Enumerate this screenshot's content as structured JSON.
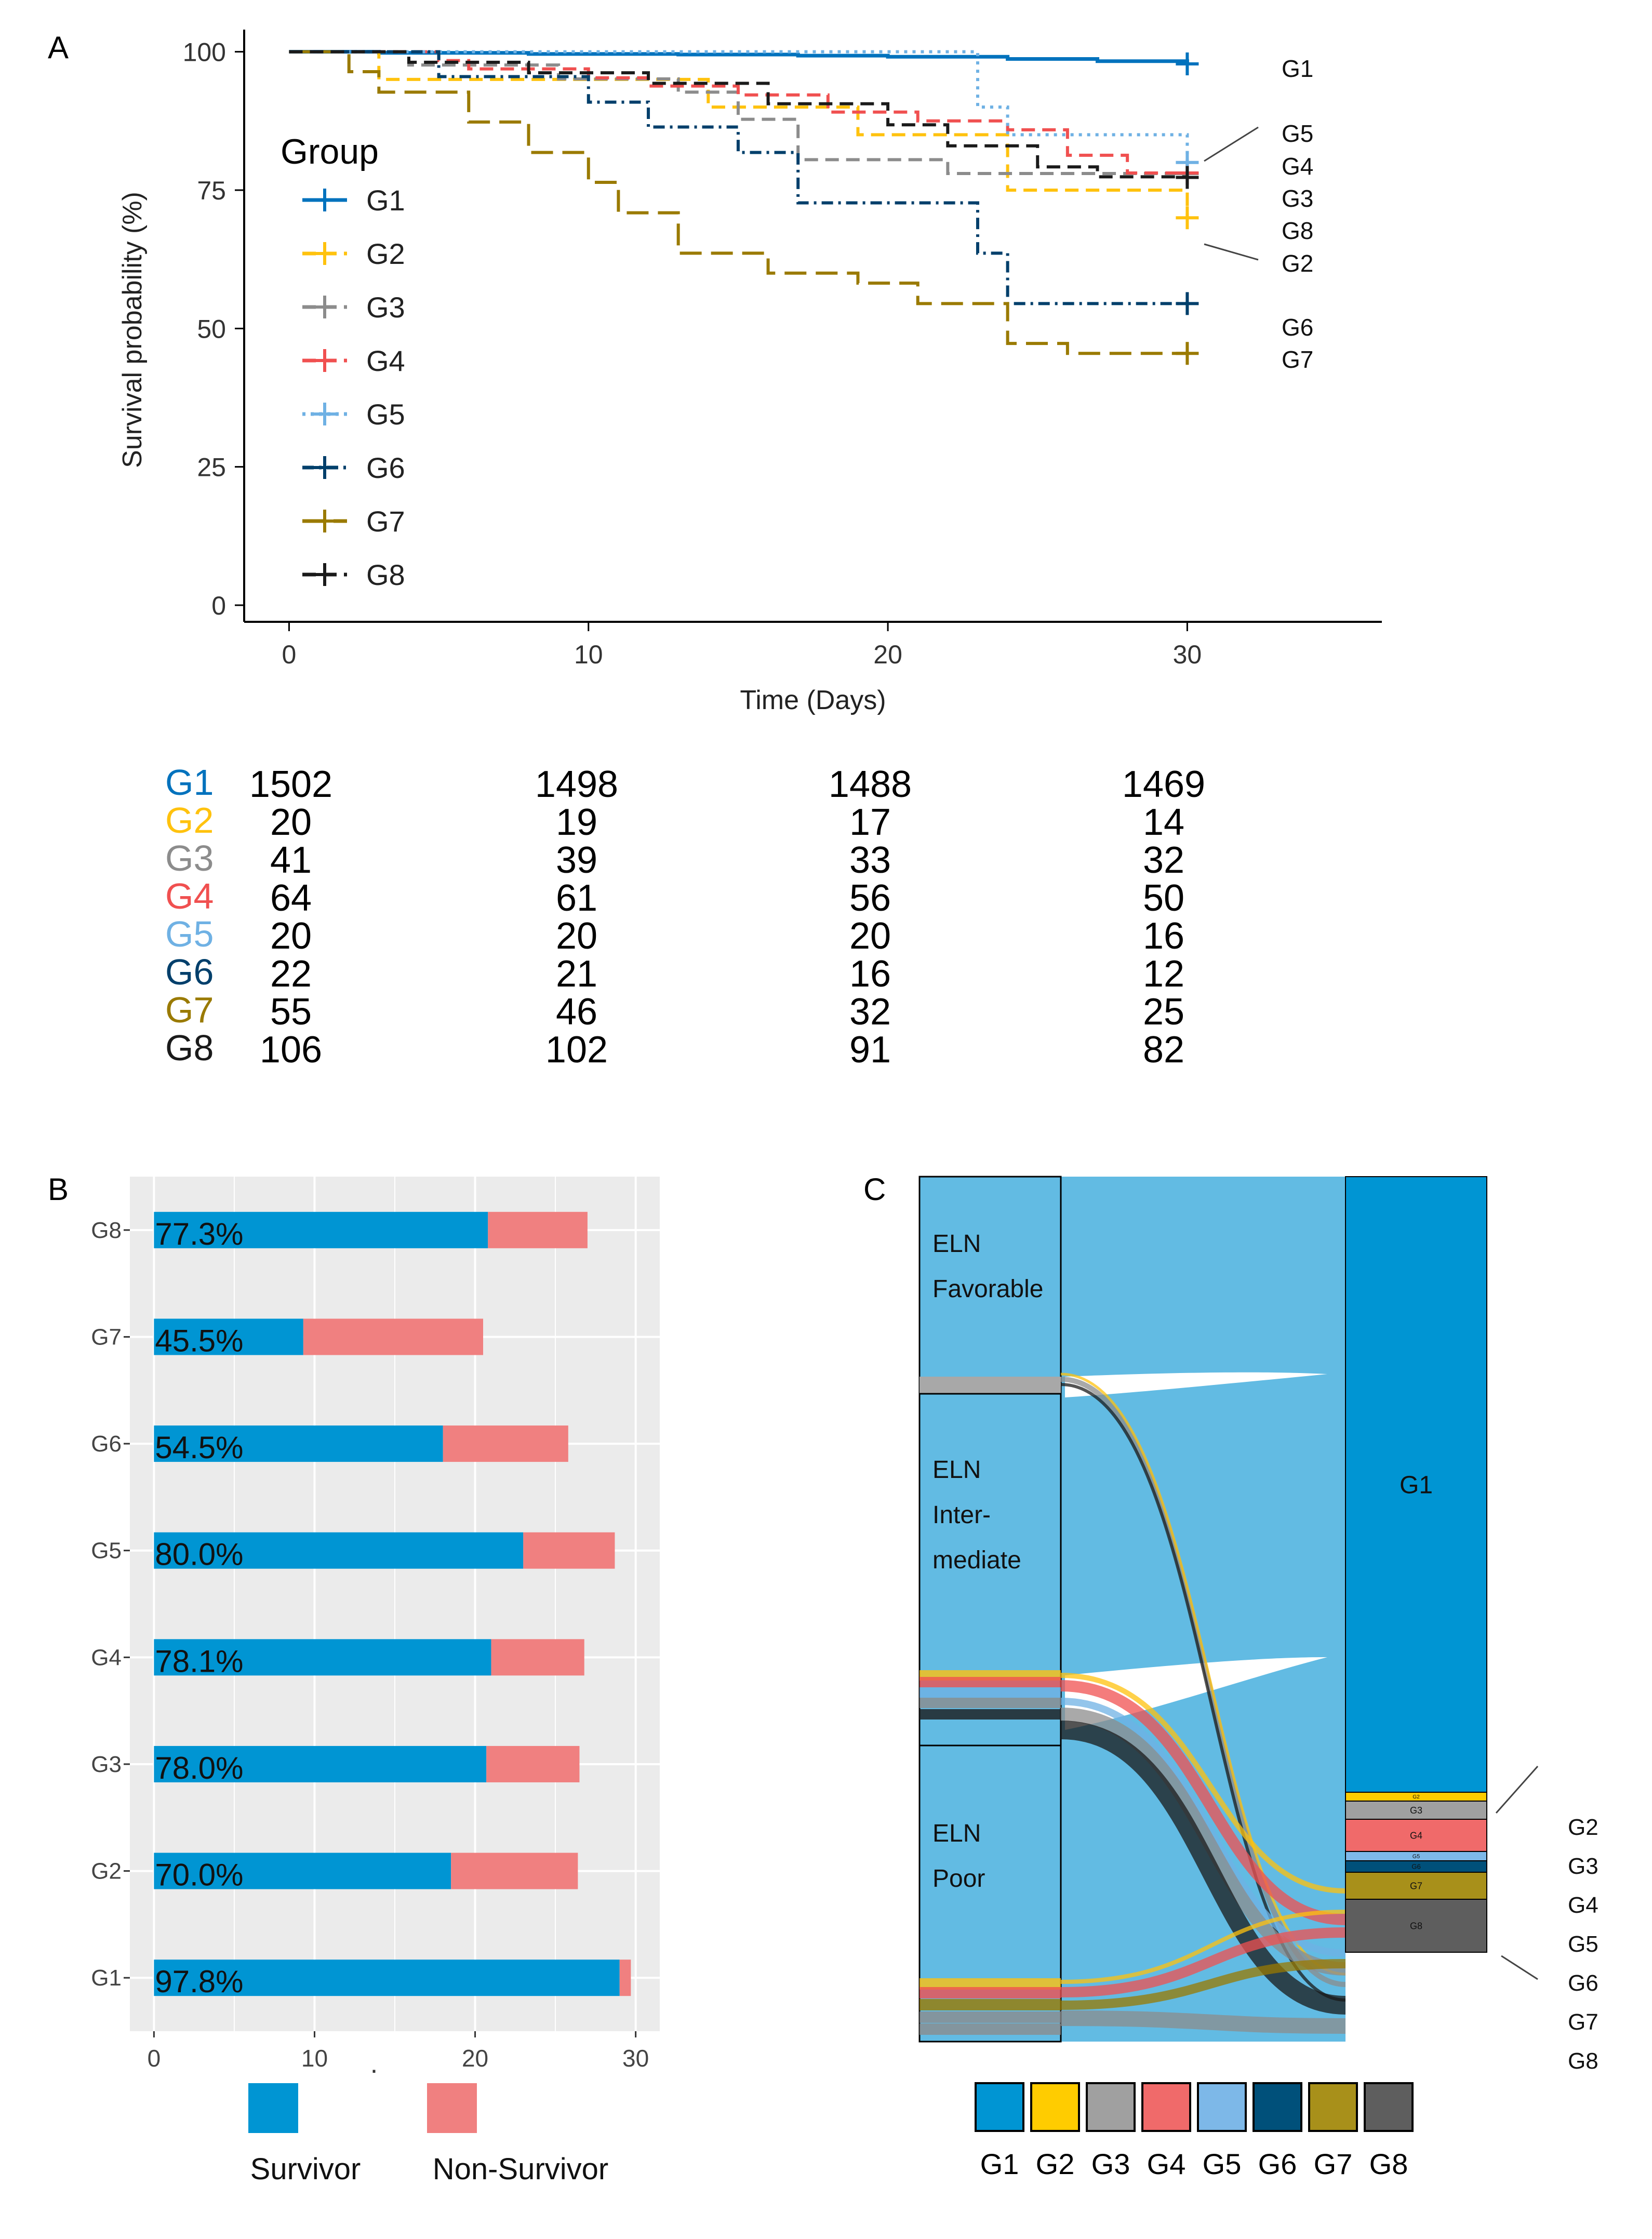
{
  "panel_labels": {
    "a": "A",
    "b": "B",
    "c": "C"
  },
  "colors": {
    "G1": "#0072BD",
    "G2": "#FFC20E",
    "G3": "#8C8C8C",
    "G4": "#F05050",
    "G5": "#6FB1E4",
    "G6": "#003F6B",
    "G7": "#9A7A00",
    "G8": "#1A1A1A",
    "survivor": "#0095D3",
    "non_survivor": "#F08080",
    "sankey_band": "#62BBE3"
  },
  "chart_data": [
    {
      "type": "line",
      "subtype": "kaplan-meier",
      "title": "",
      "xlabel": "Time (Days)",
      "ylabel": "Survival probability (%)",
      "xlim": [
        -1.5,
        36.5
      ],
      "ylim": [
        -3,
        104
      ],
      "xticks": [
        0,
        10,
        20,
        30
      ],
      "yticks": [
        0,
        25,
        50,
        75,
        100
      ],
      "legend_title": "Group",
      "legend_position": "left-inside",
      "series": [
        {
          "name": "G1",
          "color": "#0072BD",
          "dash": "solid",
          "steps": [
            [
              0,
              100
            ],
            [
              3,
              99.8
            ],
            [
              8,
              99.6
            ],
            [
              13,
              99.5
            ],
            [
              17,
              99.3
            ],
            [
              20,
              99.1
            ],
            [
              24,
              98.7
            ],
            [
              27,
              98.3
            ],
            [
              30,
              97.8
            ]
          ]
        },
        {
          "name": "G2",
          "color": "#FFC20E",
          "dash": "dashed",
          "steps": [
            [
              0,
              100
            ],
            [
              3,
              95
            ],
            [
              10,
              95
            ],
            [
              14,
              90
            ],
            [
              19,
              85
            ],
            [
              24,
              75
            ],
            [
              28,
              75
            ],
            [
              30,
              70
            ]
          ]
        },
        {
          "name": "G3",
          "color": "#8C8C8C",
          "dash": "dashed",
          "steps": [
            [
              0,
              100
            ],
            [
              4,
              97.6
            ],
            [
              9,
              95.1
            ],
            [
              13,
              92.7
            ],
            [
              15,
              87.8
            ],
            [
              17,
              80.5
            ],
            [
              22,
              78
            ],
            [
              30,
              78
            ]
          ]
        },
        {
          "name": "G4",
          "color": "#F05050",
          "dash": "dashed",
          "steps": [
            [
              0,
              100
            ],
            [
              5,
              98.4
            ],
            [
              6,
              96.9
            ],
            [
              10,
              95.3
            ],
            [
              12,
              93.8
            ],
            [
              15,
              92.2
            ],
            [
              18,
              89.1
            ],
            [
              21,
              87.5
            ],
            [
              24,
              85.9
            ],
            [
              26,
              81.3
            ],
            [
              28,
              78.1
            ],
            [
              30,
              78.1
            ]
          ]
        },
        {
          "name": "G5",
          "color": "#6FB1E4",
          "dash": "dotted",
          "steps": [
            [
              0,
              100
            ],
            [
              20,
              100
            ],
            [
              23,
              90
            ],
            [
              24,
              85
            ],
            [
              30,
              80
            ]
          ]
        },
        {
          "name": "G6",
          "color": "#003F6B",
          "dash": "dashdot",
          "steps": [
            [
              0,
              100
            ],
            [
              5,
              95.5
            ],
            [
              10,
              90.9
            ],
            [
              12,
              86.4
            ],
            [
              15,
              81.8
            ],
            [
              17,
              72.7
            ],
            [
              23,
              63.6
            ],
            [
              24,
              54.5
            ],
            [
              30,
              54.5
            ]
          ]
        },
        {
          "name": "G7",
          "color": "#9A7A00",
          "dash": "longdash",
          "steps": [
            [
              0,
              100
            ],
            [
              2,
              96.4
            ],
            [
              3,
              92.7
            ],
            [
              6,
              87.3
            ],
            [
              8,
              81.8
            ],
            [
              10,
              76.4
            ],
            [
              11,
              70.9
            ],
            [
              13,
              63.6
            ],
            [
              16,
              60
            ],
            [
              19,
              58.2
            ],
            [
              21,
              54.5
            ],
            [
              24,
              47.3
            ],
            [
              26,
              45.5
            ],
            [
              30,
              45.5
            ]
          ]
        },
        {
          "name": "G8",
          "color": "#1A1A1A",
          "dash": "dashed",
          "steps": [
            [
              0,
              100
            ],
            [
              4,
              98.1
            ],
            [
              8,
              96.2
            ],
            [
              12,
              94.3
            ],
            [
              16,
              90.6
            ],
            [
              20,
              86.8
            ],
            [
              22,
              83
            ],
            [
              25,
              79.2
            ],
            [
              27,
              77.4
            ],
            [
              30,
              77.3
            ]
          ]
        }
      ],
      "right_labels": [
        "G1",
        "G5",
        "G4",
        "G3",
        "G8",
        "G2",
        "G6",
        "G7"
      ]
    },
    {
      "type": "table",
      "subtype": "number-at-risk",
      "columns_x": [
        0,
        10,
        20,
        30
      ],
      "rows": [
        {
          "group": "G1",
          "values": [
            "1502",
            "1498",
            "1488",
            "1469"
          ]
        },
        {
          "group": "G2",
          "values": [
            "20",
            "19",
            "17",
            "14"
          ]
        },
        {
          "group": "G3",
          "values": [
            "41",
            "39",
            "33",
            "32"
          ]
        },
        {
          "group": "G4",
          "values": [
            "64",
            "61",
            "56",
            "50"
          ]
        },
        {
          "group": "G5",
          "values": [
            "20",
            "20",
            "20",
            "16"
          ]
        },
        {
          "group": "G6",
          "values": [
            "22",
            "21",
            "16",
            "12"
          ]
        },
        {
          "group": "G7",
          "values": [
            "55",
            "46",
            "32",
            "25"
          ]
        },
        {
          "group": "G8",
          "values": [
            "106",
            "102",
            "91",
            "82"
          ]
        }
      ]
    },
    {
      "type": "bar",
      "subtype": "horizontal-stacked",
      "xlabel": ".",
      "ylabel": "",
      "xlim": [
        -1.5,
        31.5
      ],
      "xticks": [
        0,
        10,
        20,
        30
      ],
      "grid": true,
      "categories": [
        "G8",
        "G7",
        "G6",
        "G5",
        "G4",
        "G3",
        "G2",
        "G1"
      ],
      "series": [
        {
          "name": "Survivor",
          "color": "#0095D3",
          "values": [
            20.8,
            9.3,
            18.0,
            23.0,
            21.0,
            20.7,
            18.5,
            29.0
          ]
        },
        {
          "name": "Non-Survivor",
          "color": "#F08080",
          "values": [
            6.2,
            11.2,
            7.8,
            5.7,
            5.8,
            5.8,
            7.9,
            0.7
          ]
        }
      ],
      "bar_labels": [
        "77.3%",
        "45.5%",
        "54.5%",
        "80.0%",
        "78.1%",
        "78.0%",
        "70.0%",
        "97.8%"
      ],
      "legend_position": "bottom"
    },
    {
      "type": "other",
      "subtype": "sankey",
      "left_nodes": [
        {
          "label_lines": [
            "ELN",
            "Favorable"
          ]
        },
        {
          "label_lines": [
            "ELN",
            "Inter-",
            "mediate"
          ]
        },
        {
          "label_lines": [
            "ELN",
            "Poor"
          ]
        }
      ],
      "right_nodes": [
        {
          "name": "G1",
          "label": "G1"
        },
        {
          "name": "G2",
          "label": "G2"
        },
        {
          "name": "G3",
          "label": "G3"
        },
        {
          "name": "G4",
          "label": "G4"
        },
        {
          "name": "G5",
          "label": "G5"
        },
        {
          "name": "G6",
          "label": "G6"
        },
        {
          "name": "G7",
          "label": "G7"
        },
        {
          "name": "G8",
          "label": "G8"
        }
      ],
      "outside_labels": [
        "G2",
        "G3",
        "G4",
        "G5",
        "G6",
        "G7",
        "G8"
      ],
      "legend": [
        "G1",
        "G2",
        "G3",
        "G4",
        "G5",
        "G6",
        "G7",
        "G8"
      ]
    }
  ]
}
